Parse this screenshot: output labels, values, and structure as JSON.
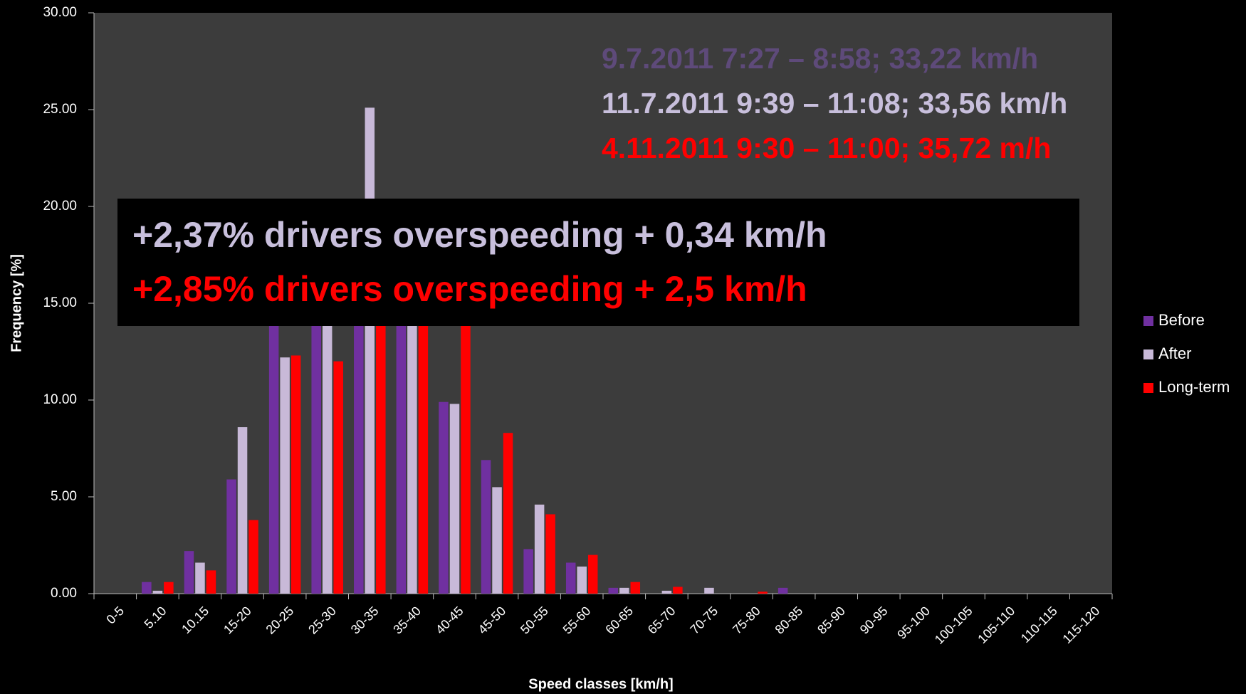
{
  "chart_data": {
    "type": "bar",
    "xlabel": "Speed classes [km/h]",
    "ylabel": "Frequency [%]",
    "categories": [
      "0-5",
      "5.10",
      "10.15",
      "15-20",
      "20-25",
      "25-30",
      "30-35",
      "35-40",
      "40-45",
      "45-50",
      "50-55",
      "55-60",
      "60-65",
      "65-70",
      "70-75",
      "75-80",
      "80-85",
      "85-90",
      "90-95",
      "95-100",
      "100-105",
      "105-110",
      "110-115",
      "115-120"
    ],
    "series": [
      {
        "name": "Before",
        "color": "#7030a0",
        "values": [
          0,
          0.6,
          2.2,
          5.9,
          15.5,
          18.5,
          19,
          16,
          9.9,
          6.9,
          2.3,
          1.6,
          0.3,
          0,
          0,
          0,
          0.3,
          0,
          0,
          0,
          0,
          0,
          0,
          0
        ]
      },
      {
        "name": "After",
        "color": "#c8b9d8",
        "values": [
          0,
          0.15,
          1.6,
          8.6,
          12.2,
          17.5,
          25.1,
          14.5,
          9.8,
          5.5,
          4.6,
          1.4,
          0.3,
          0.15,
          0.3,
          0,
          0,
          0,
          0,
          0,
          0,
          0,
          0,
          0
        ]
      },
      {
        "name": "Long-term",
        "color": "#ff0000",
        "values": [
          0,
          0.6,
          1.2,
          3.8,
          12.3,
          12.0,
          16,
          14.5,
          14.5,
          8.3,
          4.1,
          2.0,
          0.6,
          0.35,
          0,
          0.1,
          0,
          0,
          0,
          0,
          0,
          0,
          0,
          0
        ]
      }
    ],
    "ylim": [
      0,
      30
    ],
    "yticks": [
      {
        "value": 0,
        "label": "0.00"
      },
      {
        "value": 5,
        "label": "5.00"
      },
      {
        "value": 10,
        "label": "10.00"
      },
      {
        "value": 15,
        "label": "15.00"
      },
      {
        "value": 20,
        "label": "20.00"
      },
      {
        "value": 25,
        "label": "25.00"
      },
      {
        "value": 30,
        "label": "30.00"
      }
    ],
    "legend": "right",
    "annotations": [
      {
        "text": "9.7.2011 7:27 – 8:58; 33,22 km/h",
        "color": "#5e4a7a"
      },
      {
        "text": "11.7.2011 9:39 – 11:08; 33,56 km/h",
        "color": "#c8bfdc"
      },
      {
        "text": "4.11.2011 9:30 – 11:00; 35,72 m/h",
        "color": "#ff0000"
      }
    ],
    "callout": [
      {
        "text": "+2,37% drivers overspeeding + 0,34 km/h",
        "color": "#c8bfdc"
      },
      {
        "text": "+2,85% drivers overspeeding + 2,5 km/h",
        "color": "#ff0000"
      }
    ]
  }
}
